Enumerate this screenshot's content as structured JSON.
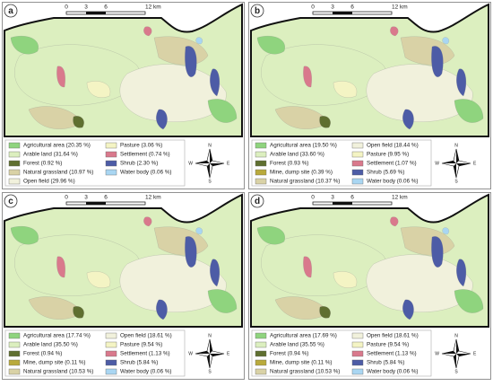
{
  "scale_labels": [
    "0",
    "3",
    "6",
    "12 km"
  ],
  "compass": {
    "n": "N",
    "s": "S",
    "e": "E",
    "w": "W"
  },
  "colors": {
    "Agricultural area": "#8fd47e",
    "Arable land": "#dcefbf",
    "Forest": "#5f6f30",
    "Mine, dump site": "#b9aa3c",
    "Natural grassland": "#d9d2a6",
    "Open field": "#f1f1dc",
    "Pasture": "#f4f4c4",
    "Settlement": "#d9798c",
    "Shrub": "#4d5ca6",
    "Water body": "#a9d6f2"
  },
  "panels": [
    {
      "label": "a",
      "legend": [
        {
          "key": "Agricultural area",
          "text": "Agricultural area (20.35 %)"
        },
        {
          "key": "Arable land",
          "text": "Arable land (31.64 %)"
        },
        {
          "key": "Forest",
          "text": "Forest (0.92 %)"
        },
        {
          "key": "Natural grassland",
          "text": "Natural grassland (10.97 %)"
        },
        {
          "key": "Open field",
          "text": "Open field (29.96 %)"
        },
        {
          "key": "Pasture",
          "text": "Pasture (3.06 %)"
        },
        {
          "key": "Settlement",
          "text": "Settlement (0.74 %)"
        },
        {
          "key": "Shrub",
          "text": "Shrub (2.30 %)"
        },
        {
          "key": "Water body",
          "text": "Water body (0.06 %)"
        }
      ]
    },
    {
      "label": "b",
      "legend": [
        {
          "key": "Agricultural area",
          "text": "Agricultural area (19.50 %)"
        },
        {
          "key": "Arable land",
          "text": "Arable land (33.60 %)"
        },
        {
          "key": "Forest",
          "text": "Forest (0.93 %)"
        },
        {
          "key": "Mine, dump site",
          "text": "Mine, dump site (0.39 %)"
        },
        {
          "key": "Natural grassland",
          "text": "Natural grassland (10.37 %)"
        },
        {
          "key": "Open field",
          "text": "Open field (18.44 %)"
        },
        {
          "key": "Pasture",
          "text": "Pasture (9.95 %)"
        },
        {
          "key": "Settlement",
          "text": "Settlement (1.07 %)"
        },
        {
          "key": "Shrub",
          "text": "Shrub (5.69 %)"
        },
        {
          "key": "Water body",
          "text": "Water body (0.06 %)"
        }
      ]
    },
    {
      "label": "c",
      "legend": [
        {
          "key": "Agricultural area",
          "text": "Agricultural area (17.74 %)"
        },
        {
          "key": "Arable land",
          "text": "Arable land (35.50 %)"
        },
        {
          "key": "Forest",
          "text": "Forest (0.94 %)"
        },
        {
          "key": "Mine, dump site",
          "text": "Mine, dump site (0.11 %)"
        },
        {
          "key": "Natural grassland",
          "text": "Natural grassland (10.53 %)"
        },
        {
          "key": "Open field",
          "text": "Open field (18.61 %)"
        },
        {
          "key": "Pasture",
          "text": "Pasture (9.54 %)"
        },
        {
          "key": "Settlement",
          "text": "Settlement (1.13 %)"
        },
        {
          "key": "Shrub",
          "text": "Shrub (5.84 %)"
        },
        {
          "key": "Water body",
          "text": "Water body (0.06 %)"
        }
      ]
    },
    {
      "label": "d",
      "legend": [
        {
          "key": "Agricultural area",
          "text": "Agricultural area (17.69 %)"
        },
        {
          "key": "Arable land",
          "text": "Arable land (35.55 %)"
        },
        {
          "key": "Forest",
          "text": "Forest (0.94 %)"
        },
        {
          "key": "Mine, dump site",
          "text": "Mine, dump site (0.11 %)"
        },
        {
          "key": "Natural grassland",
          "text": "Natural grassland (10.53 %)"
        },
        {
          "key": "Open field",
          "text": "Open field (18.61 %)"
        },
        {
          "key": "Pasture",
          "text": "Pasture (9.54 %)"
        },
        {
          "key": "Settlement",
          "text": "Settlement (1.13 %)"
        },
        {
          "key": "Shrub",
          "text": "Shrub (5.84 %)"
        },
        {
          "key": "Water body",
          "text": "Water body (0.06 %)"
        }
      ]
    }
  ]
}
